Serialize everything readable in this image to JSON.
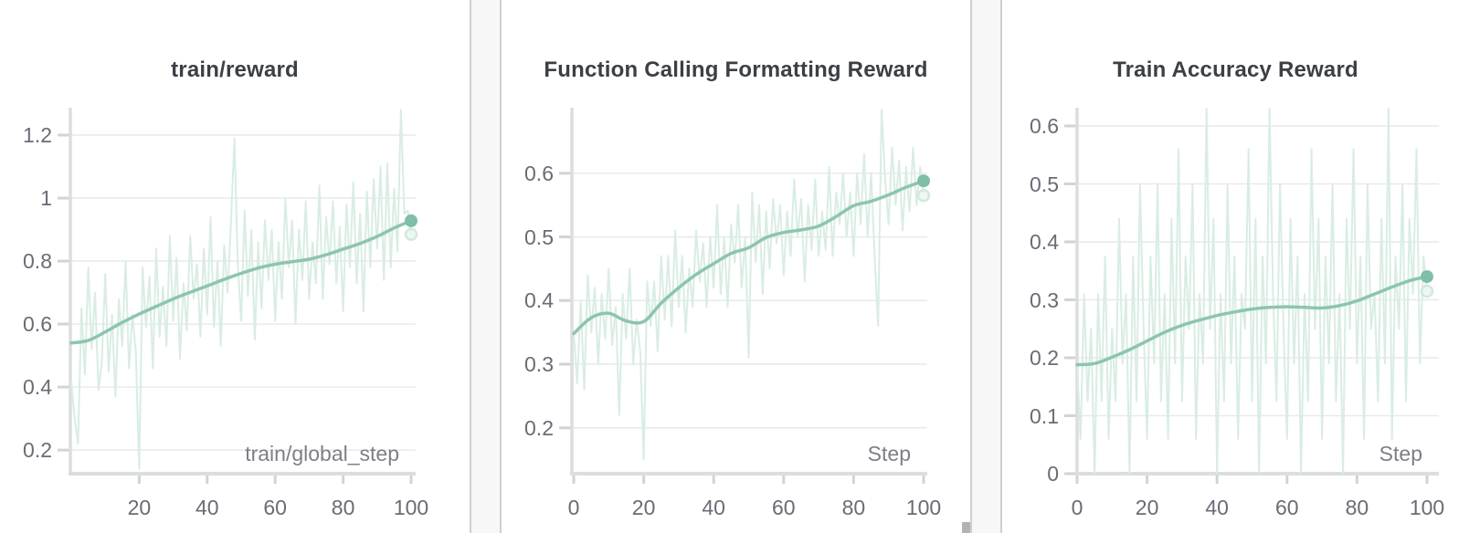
{
  "page": {
    "background": "#ffffff"
  },
  "styles": {
    "title_color": "#3b4046",
    "tick_label_color": "#6a6b75",
    "axis_label_color": "#7d7e88",
    "gridline_color": "#e9e9eb",
    "axis_line_color": "#dcddde",
    "tick_mark_color": "#d2d3d6",
    "raw_line_color": "#d9ede3",
    "smooth_line_color": "#8dc5af",
    "end_dot_color": "#7fbfa7",
    "ghost_dot_fill": "#eef7f2",
    "ghost_dot_stroke": "#cde8da",
    "divider_fill": "#f7f7f8",
    "divider_border": "#cecfd1",
    "scrollbar_color": "#b3b3b6"
  },
  "chart_data": [
    {
      "type": "line",
      "title": "train/reward",
      "xlabel": "train/global_step",
      "xlim": [
        0,
        100
      ],
      "ylim": [
        0.125,
        1.287
      ],
      "grid": "horizontal",
      "legend": "none",
      "x_ticks": [
        20,
        40,
        60,
        80,
        100
      ],
      "x_tick_labels": [
        "20",
        "40",
        "60",
        "80",
        "100"
      ],
      "y_ticks": [
        0.2,
        0.4,
        0.6,
        0.8,
        1.0,
        1.2
      ],
      "y_tick_labels": [
        "0.2",
        "0.4",
        "0.6",
        "0.8",
        "1",
        "1.2"
      ],
      "series": [
        {
          "name": "smoothed",
          "x": [
            0,
            5,
            10,
            15,
            20,
            25,
            30,
            35,
            40,
            45,
            50,
            55,
            60,
            65,
            70,
            75,
            80,
            85,
            90,
            95,
            100
          ],
          "y": [
            0.54,
            0.548,
            0.575,
            0.605,
            0.632,
            0.656,
            0.68,
            0.701,
            0.721,
            0.742,
            0.761,
            0.778,
            0.79,
            0.798,
            0.806,
            0.82,
            0.838,
            0.856,
            0.878,
            0.905,
            0.928
          ],
          "end_dot": 0.928
        },
        {
          "name": "raw",
          "x_start": 0,
          "x_step": 1,
          "y": [
            0.42,
            0.3,
            0.22,
            0.65,
            0.44,
            0.78,
            0.52,
            0.7,
            0.39,
            0.48,
            0.76,
            0.45,
            0.63,
            0.37,
            0.68,
            0.53,
            0.8,
            0.46,
            0.63,
            0.51,
            0.14,
            0.78,
            0.59,
            0.75,
            0.46,
            0.84,
            0.56,
            0.72,
            0.53,
            0.88,
            0.61,
            0.81,
            0.49,
            0.73,
            0.58,
            0.88,
            0.68,
            0.79,
            0.56,
            0.84,
            0.63,
            0.94,
            0.59,
            0.8,
            0.53,
            0.85,
            0.7,
            0.92,
            1.19,
            0.79,
            0.61,
            0.96,
            0.69,
            0.9,
            0.55,
            0.86,
            0.65,
            0.93,
            0.74,
            0.9,
            0.61,
            0.86,
            0.68,
            1.0,
            0.78,
            0.93,
            0.6,
            0.9,
            0.74,
            0.99,
            0.68,
            0.86,
            0.73,
            1.04,
            0.68,
            0.94,
            0.79,
            0.99,
            0.73,
            0.91,
            0.64,
            0.98,
            0.78,
            1.05,
            0.73,
            0.95,
            0.64,
            1.02,
            0.78,
            1.06,
            0.84,
            1.1,
            0.74,
            1.11,
            0.78,
            1.03,
            0.83,
            1.28,
            0.95,
            0.96,
            0.885
          ],
          "end_dot": 0.885
        }
      ]
    },
    {
      "type": "line",
      "title": "Function Calling Formatting Reward",
      "xlabel": "Step",
      "xlim": [
        0,
        100
      ],
      "ylim": [
        0.128,
        0.703
      ],
      "grid": "horizontal",
      "legend": "none",
      "x_ticks": [
        0,
        20,
        40,
        60,
        80,
        100
      ],
      "x_tick_labels": [
        "0",
        "20",
        "40",
        "60",
        "80",
        "100"
      ],
      "y_ticks": [
        0.2,
        0.3,
        0.4,
        0.5,
        0.6
      ],
      "y_tick_labels": [
        "0.2",
        "0.3",
        "0.4",
        "0.5",
        "0.6"
      ],
      "series": [
        {
          "name": "smoothed",
          "x": [
            0,
            5,
            10,
            15,
            20,
            25,
            30,
            35,
            40,
            45,
            50,
            55,
            60,
            65,
            70,
            75,
            80,
            85,
            90,
            95,
            100
          ],
          "y": [
            0.348,
            0.373,
            0.38,
            0.368,
            0.367,
            0.396,
            0.42,
            0.441,
            0.458,
            0.474,
            0.483,
            0.499,
            0.507,
            0.511,
            0.517,
            0.532,
            0.549,
            0.556,
            0.566,
            0.578,
            0.588
          ],
          "end_dot": 0.588
        },
        {
          "name": "raw",
          "x_start": 0,
          "x_step": 1,
          "y": [
            0.35,
            0.27,
            0.4,
            0.26,
            0.44,
            0.35,
            0.42,
            0.3,
            0.41,
            0.34,
            0.45,
            0.33,
            0.39,
            0.22,
            0.41,
            0.34,
            0.45,
            0.3,
            0.37,
            0.32,
            0.15,
            0.43,
            0.36,
            0.43,
            0.32,
            0.47,
            0.37,
            0.47,
            0.36,
            0.51,
            0.39,
            0.47,
            0.35,
            0.45,
            0.39,
            0.51,
            0.43,
            0.49,
            0.39,
            0.5,
            0.42,
            0.55,
            0.41,
            0.5,
            0.39,
            0.52,
            0.46,
            0.55,
            0.42,
            0.5,
            0.31,
            0.57,
            0.46,
            0.55,
            0.41,
            0.54,
            0.45,
            0.56,
            0.49,
            0.55,
            0.44,
            0.54,
            0.47,
            0.59,
            0.5,
            0.56,
            0.43,
            0.55,
            0.48,
            0.59,
            0.47,
            0.54,
            0.48,
            0.61,
            0.47,
            0.57,
            0.52,
            0.6,
            0.5,
            0.57,
            0.47,
            0.6,
            0.52,
            0.63,
            0.5,
            0.6,
            0.47,
            0.36,
            0.7,
            0.59,
            0.52,
            0.64,
            0.55,
            0.62,
            0.51,
            0.61,
            0.54,
            0.64,
            0.55,
            0.61,
            0.565
          ],
          "end_dot": 0.565
        }
      ]
    },
    {
      "type": "line",
      "title": "Train Accuracy Reward",
      "xlabel": "Step",
      "xlim": [
        0,
        100
      ],
      "ylim": [
        0,
        0.6315
      ],
      "grid": "horizontal",
      "legend": "none",
      "x_ticks": [
        0,
        20,
        40,
        60,
        80,
        100
      ],
      "x_tick_labels": [
        "0",
        "20",
        "40",
        "60",
        "80",
        "100"
      ],
      "y_ticks": [
        0,
        0.1,
        0.2,
        0.3,
        0.4,
        0.5,
        0.6
      ],
      "y_tick_labels": [
        "0",
        "0.1",
        "0.2",
        "0.3",
        "0.4",
        "0.5",
        "0.6"
      ],
      "series": [
        {
          "name": "smoothed",
          "x": [
            0,
            5,
            10,
            15,
            20,
            25,
            30,
            35,
            40,
            45,
            50,
            55,
            60,
            65,
            70,
            75,
            80,
            85,
            90,
            95,
            100
          ],
          "y": [
            0.188,
            0.19,
            0.201,
            0.214,
            0.229,
            0.244,
            0.256,
            0.265,
            0.273,
            0.279,
            0.284,
            0.287,
            0.288,
            0.287,
            0.286,
            0.29,
            0.298,
            0.31,
            0.322,
            0.333,
            0.34
          ],
          "end_dot": 0.34
        },
        {
          "name": "raw",
          "x_start": 0,
          "x_step": 1,
          "y": [
            0.19,
            0.06,
            0.31,
            0.125,
            0.25,
            0,
            0.31,
            0.125,
            0.375,
            0.06,
            0.25,
            0.125,
            0.44,
            0.19,
            0.31,
            0,
            0.375,
            0.125,
            0.5,
            0.25,
            0.06,
            0.375,
            0.19,
            0.5,
            0.125,
            0.31,
            0.06,
            0.44,
            0.19,
            0.56,
            0.125,
            0.375,
            0.25,
            0.5,
            0.06,
            0.31,
            0.19,
            0.63,
            0.25,
            0.44,
            0,
            0.31,
            0.125,
            0.5,
            0.19,
            0.375,
            0.06,
            0.31,
            0.25,
            0.56,
            0.125,
            0.44,
            0,
            0.375,
            0.19,
            0.63,
            0.31,
            0.125,
            0.5,
            0.25,
            0.06,
            0.44,
            0.19,
            0.375,
            0,
            0.31,
            0.125,
            0.56,
            0.25,
            0.44,
            0.06,
            0.375,
            0.19,
            0.5,
            0.125,
            0.31,
            0,
            0.44,
            0.25,
            0.56,
            0.19,
            0.375,
            0.06,
            0.5,
            0.25,
            0.31,
            0.125,
            0.44,
            0.19,
            0.63,
            0.06,
            0.375,
            0.25,
            0.5,
            0.125,
            0.44,
            0.31,
            0.56,
            0.19,
            0.375,
            0.315
          ],
          "end_dot": 0.315
        }
      ]
    }
  ]
}
